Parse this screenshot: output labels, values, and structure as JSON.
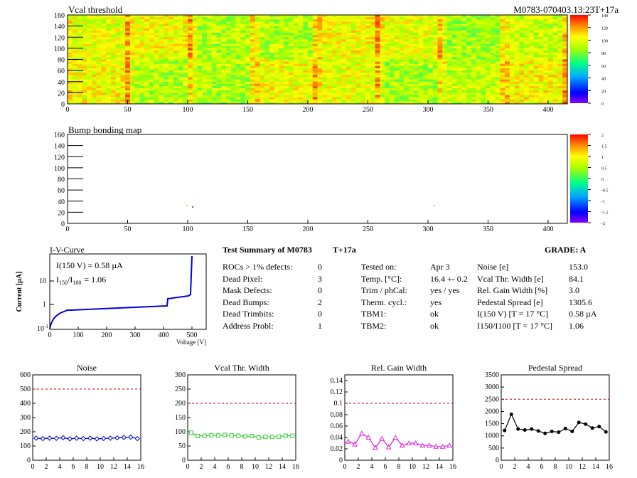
{
  "vcal_map": {
    "title": "Vcal threshold",
    "module_id": "M0783-070403.13:23T+17a",
    "x_ticks": [
      "0",
      "50",
      "100",
      "150",
      "200",
      "250",
      "300",
      "350",
      "400"
    ],
    "y_ticks": [
      "0",
      "20",
      "40",
      "60",
      "80",
      "100",
      "120",
      "140",
      "160"
    ],
    "scale_ticks": [
      "0",
      "20",
      "40",
      "60",
      "80",
      "100",
      "120",
      "140"
    ],
    "xlim": [
      0,
      416
    ],
    "ylim": [
      0,
      160
    ],
    "zlim": [
      0,
      140
    ]
  },
  "bump_map": {
    "title": "Bump bonding map",
    "x_ticks": [
      "0",
      "50",
      "100",
      "150",
      "200",
      "250",
      "300",
      "350",
      "400"
    ],
    "y_ticks": [
      "0",
      "20",
      "40",
      "60",
      "80",
      "100",
      "120",
      "140",
      "160"
    ],
    "scale_ticks": [
      "2",
      "1.5",
      "1",
      "0.5",
      "0",
      "-0.5",
      "-1",
      "-1.5",
      "-2"
    ],
    "xlim": [
      0,
      416
    ],
    "ylim": [
      0,
      160
    ],
    "zlim": [
      -2,
      2
    ]
  },
  "iv": {
    "title": "I-V-Curve",
    "annotation_1": "I(150 V) = 0.58 µA",
    "annotation_2_main": "I",
    "annotation_2_sub1": "150",
    "annotation_2_mid": "/I",
    "annotation_2_sub2": "100",
    "annotation_2_val": "=  1.06",
    "ylabel": "Current [µA]",
    "xlabel": "Voltage [V]",
    "x_ticks": [
      "0",
      "100",
      "200",
      "300",
      "400",
      "500"
    ],
    "y_ticks": [
      "10",
      "1",
      "10"
    ],
    "y_exp": "-1"
  },
  "summary": {
    "title": "Test Summary of M0783",
    "temp_tag": "T+17a",
    "grade": "GRADE:  A",
    "col1": [
      {
        "label": "ROCs > 1% defects:",
        "value": "0"
      },
      {
        "label": "Dead Pixel:",
        "value": "3"
      },
      {
        "label": "Mask Defects:",
        "value": "0"
      },
      {
        "label": "Dead Bumps:",
        "value": "2"
      },
      {
        "label": "Dead Trimbits:",
        "value": "0"
      },
      {
        "label": "Address Probl:",
        "value": "1"
      }
    ],
    "col2": [
      {
        "label": "Tested on:",
        "value": "Apr 3"
      },
      {
        "label": "Temp. [°C]:",
        "value": "16.4 +- 0.2"
      },
      {
        "label": "Trim / phCal:",
        "value": "yes / yes"
      },
      {
        "label": "Therm. cycl.:",
        "value": "yes"
      },
      {
        "label": "TBM1:",
        "value": "ok"
      },
      {
        "label": "TBM2:",
        "value": "ok"
      }
    ],
    "col3": [
      {
        "label": "Noise [e]",
        "value": "153.0"
      },
      {
        "label": "Vcal Thr. Width [e]",
        "value": "84.1"
      },
      {
        "label": "Rel. Gain Width [%]",
        "value": "3.0"
      },
      {
        "label": "Pedestal Spread [e]",
        "value": "1305.6"
      },
      {
        "label": "I(150 V) [T = 17 °C]",
        "value": "0.58 µA"
      },
      {
        "label": "I150/I100  [T = 17 °C]",
        "value": "1.06"
      }
    ]
  },
  "chart_data": [
    {
      "type": "line",
      "title": "Noise",
      "x": [
        0,
        1,
        2,
        3,
        4,
        5,
        6,
        7,
        8,
        9,
        10,
        11,
        12,
        13,
        14,
        15
      ],
      "values": [
        155,
        152,
        155,
        154,
        158,
        150,
        155,
        152,
        155,
        150,
        153,
        155,
        157,
        160,
        162,
        152
      ],
      "ylim": [
        0,
        600
      ],
      "y_ticks": [
        "0",
        "100",
        "200",
        "300",
        "400",
        "500",
        "600"
      ],
      "x_ticks": [
        "0",
        "2",
        "4",
        "6",
        "8",
        "10",
        "12",
        "14",
        "16"
      ],
      "limit": 500,
      "color": "#0000cc",
      "marker": "diamond"
    },
    {
      "type": "line",
      "title": "Vcal Thr. Width",
      "x": [
        0,
        1,
        2,
        3,
        4,
        5,
        6,
        7,
        8,
        9,
        10,
        11,
        12,
        13,
        14,
        15
      ],
      "values": [
        97,
        85,
        86,
        88,
        87,
        89,
        87,
        86,
        84,
        85,
        80,
        82,
        82,
        83,
        86,
        86
      ],
      "ylim": [
        0,
        300
      ],
      "y_ticks": [
        "0",
        "50",
        "100",
        "150",
        "200",
        "250",
        "300"
      ],
      "x_ticks": [
        "0",
        "2",
        "4",
        "6",
        "8",
        "10",
        "12",
        "14",
        "16"
      ],
      "limit": 200,
      "color": "#33cc33",
      "marker": "square"
    },
    {
      "type": "line",
      "title": "Rel. Gain Width",
      "x": [
        0,
        1,
        2,
        3,
        4,
        5,
        6,
        7,
        8,
        9,
        10,
        11,
        12,
        13,
        14,
        15
      ],
      "values": [
        0.033,
        0.028,
        0.047,
        0.04,
        0.022,
        0.038,
        0.023,
        0.04,
        0.026,
        0.03,
        0.03,
        0.026,
        0.026,
        0.024,
        0.024,
        0.026
      ],
      "ylim": [
        0,
        0.15
      ],
      "y_ticks": [
        "0",
        "0.02",
        "0.04",
        "0.06",
        "0.08",
        "0.1",
        "0.12",
        "0.14"
      ],
      "x_ticks": [
        "0",
        "2",
        "4",
        "6",
        "8",
        "10",
        "12",
        "14",
        "16"
      ],
      "limit": 0.1,
      "color": "#dd22dd",
      "marker": "triangle"
    },
    {
      "type": "line",
      "title": "Pedestal Spread",
      "x": [
        0,
        1,
        2,
        3,
        4,
        5,
        6,
        7,
        8,
        9,
        10,
        11,
        12,
        13,
        14,
        15
      ],
      "values": [
        1220,
        1880,
        1280,
        1240,
        1280,
        1200,
        1100,
        1180,
        1150,
        1300,
        1180,
        1550,
        1480,
        1320,
        1380,
        1160
      ],
      "ylim": [
        0,
        3500
      ],
      "y_ticks": [
        "0",
        "500",
        "1000",
        "1500",
        "2000",
        "2500",
        "3000",
        "3500"
      ],
      "x_ticks": [
        "0",
        "2",
        "4",
        "6",
        "8",
        "10",
        "12",
        "14",
        "16"
      ],
      "limit": 2500,
      "color": "#000000",
      "marker": "circle"
    }
  ]
}
